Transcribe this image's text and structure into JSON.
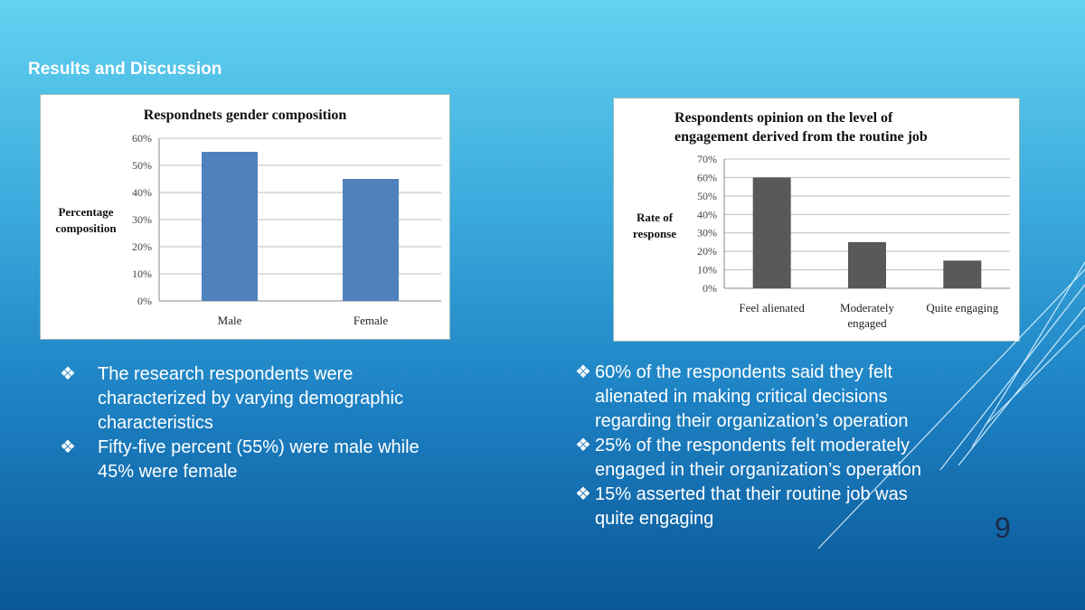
{
  "heading": "Results and Discussion",
  "page_number": "9",
  "chart_data": [
    {
      "type": "bar",
      "title": "Respondnets gender composition",
      "ylabel_lines": [
        "Percentage",
        "composition"
      ],
      "xlabel": "",
      "categories": [
        "Male",
        "Female"
      ],
      "values": [
        55,
        45
      ],
      "ylim": [
        0,
        60
      ],
      "yticks": [
        "0%",
        "10%",
        "20%",
        "30%",
        "40%",
        "50%",
        "60%"
      ],
      "grid": true,
      "color": "#4f81bd"
    },
    {
      "type": "bar",
      "title_lines": [
        "Respondents opinion on the level of",
        "engagement derived from the routine job"
      ],
      "ylabel_lines": [
        "Rate of",
        "response"
      ],
      "xlabel": "",
      "categories": [
        [
          "Feel alienated"
        ],
        [
          "Moderately",
          "engaged"
        ],
        [
          "Quite engaging"
        ]
      ],
      "values": [
        60,
        25,
        15
      ],
      "ylim": [
        0,
        70
      ],
      "yticks": [
        "0%",
        "10%",
        "20%",
        "30%",
        "40%",
        "50%",
        "60%",
        "70%"
      ],
      "grid": true,
      "color": "#595959"
    }
  ],
  "left_bullets": [
    {
      "symbol": "❖",
      "lines": [
        "The research respondents were",
        "characterized by varying demographic",
        "characteristics"
      ]
    },
    {
      "symbol": "❖",
      "lines": [
        "Fifty-five percent (55%) were male while",
        "45% were female"
      ]
    }
  ],
  "right_bullets": [
    {
      "symbol": "❖",
      "lines": [
        "60% of the respondents said they felt",
        "alienated in making critical decisions",
        "regarding their organization’s operation"
      ]
    },
    {
      "symbol": "❖",
      "lines": [
        "25% of the respondents felt moderately",
        "engaged in their organization’s operation"
      ]
    },
    {
      "symbol": "❖",
      "lines": [
        "15% asserted that their routine job was",
        "quite engaging"
      ]
    }
  ]
}
